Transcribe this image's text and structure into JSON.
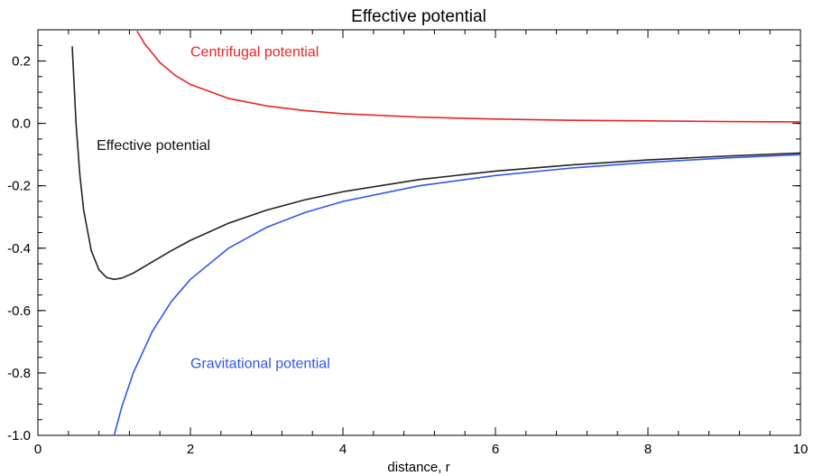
{
  "chart_data": {
    "type": "line",
    "title": "Effective potential",
    "xlabel": "distance, r",
    "ylabel": "",
    "xlim": [
      0,
      10
    ],
    "ylim": [
      -1.0,
      0.3
    ],
    "x_ticks": [
      0,
      2,
      4,
      6,
      8,
      10
    ],
    "x_tick_labels": [
      "0",
      "2",
      "4",
      "6",
      "8",
      "10"
    ],
    "y_ticks": [
      0.2,
      0.0,
      -0.2,
      -0.4,
      -0.6,
      -0.8,
      -1.0
    ],
    "y_tick_labels": [
      "0.2",
      "0.0",
      "-0.2",
      "-0.4",
      "-0.6",
      "-0.8",
      "-1.0"
    ],
    "grid": false,
    "series": [
      {
        "name": "Centrifugal potential",
        "color": "#ee2222",
        "x": [
          1.3,
          1.4,
          1.6,
          1.8,
          2.0,
          2.5,
          3.0,
          3.5,
          4.0,
          5.0,
          6.0,
          7.0,
          8.0,
          9.0,
          10.0
        ],
        "y": [
          0.296,
          0.255,
          0.195,
          0.154,
          0.125,
          0.08,
          0.056,
          0.041,
          0.031,
          0.02,
          0.014,
          0.01,
          0.008,
          0.006,
          0.005
        ]
      },
      {
        "name": "Gravitational potential",
        "color": "#3355ee",
        "x": [
          1.0,
          1.1,
          1.25,
          1.5,
          1.75,
          2.0,
          2.5,
          3.0,
          3.5,
          4.0,
          5.0,
          6.0,
          7.0,
          8.0,
          9.0,
          10.0
        ],
        "y": [
          -1.0,
          -0.909,
          -0.8,
          -0.667,
          -0.571,
          -0.5,
          -0.4,
          -0.333,
          -0.286,
          -0.25,
          -0.2,
          -0.167,
          -0.143,
          -0.125,
          -0.111,
          -0.1
        ]
      },
      {
        "name": "Effective potential",
        "color": "#222222",
        "x": [
          0.45,
          0.5,
          0.55,
          0.6,
          0.7,
          0.8,
          0.9,
          1.0,
          1.1,
          1.25,
          1.5,
          1.75,
          2.0,
          2.5,
          3.0,
          3.5,
          4.0,
          5.0,
          6.0,
          7.0,
          8.0,
          9.0,
          10.0
        ],
        "y": [
          0.247,
          0.0,
          -0.165,
          -0.278,
          -0.408,
          -0.469,
          -0.494,
          -0.5,
          -0.496,
          -0.48,
          -0.444,
          -0.408,
          -0.375,
          -0.32,
          -0.278,
          -0.245,
          -0.219,
          -0.18,
          -0.153,
          -0.133,
          -0.117,
          -0.105,
          -0.095
        ]
      }
    ],
    "annotations": [
      {
        "text": "Centrifugal potential",
        "x": 2.0,
        "y": 0.215,
        "color": "#ee2222"
      },
      {
        "text": "Effective potential",
        "x": 0.77,
        "y": -0.085,
        "color": "#111111"
      },
      {
        "text": "Gravitational potential",
        "x": 2.0,
        "y": -0.785,
        "color": "#3355ee"
      }
    ]
  }
}
